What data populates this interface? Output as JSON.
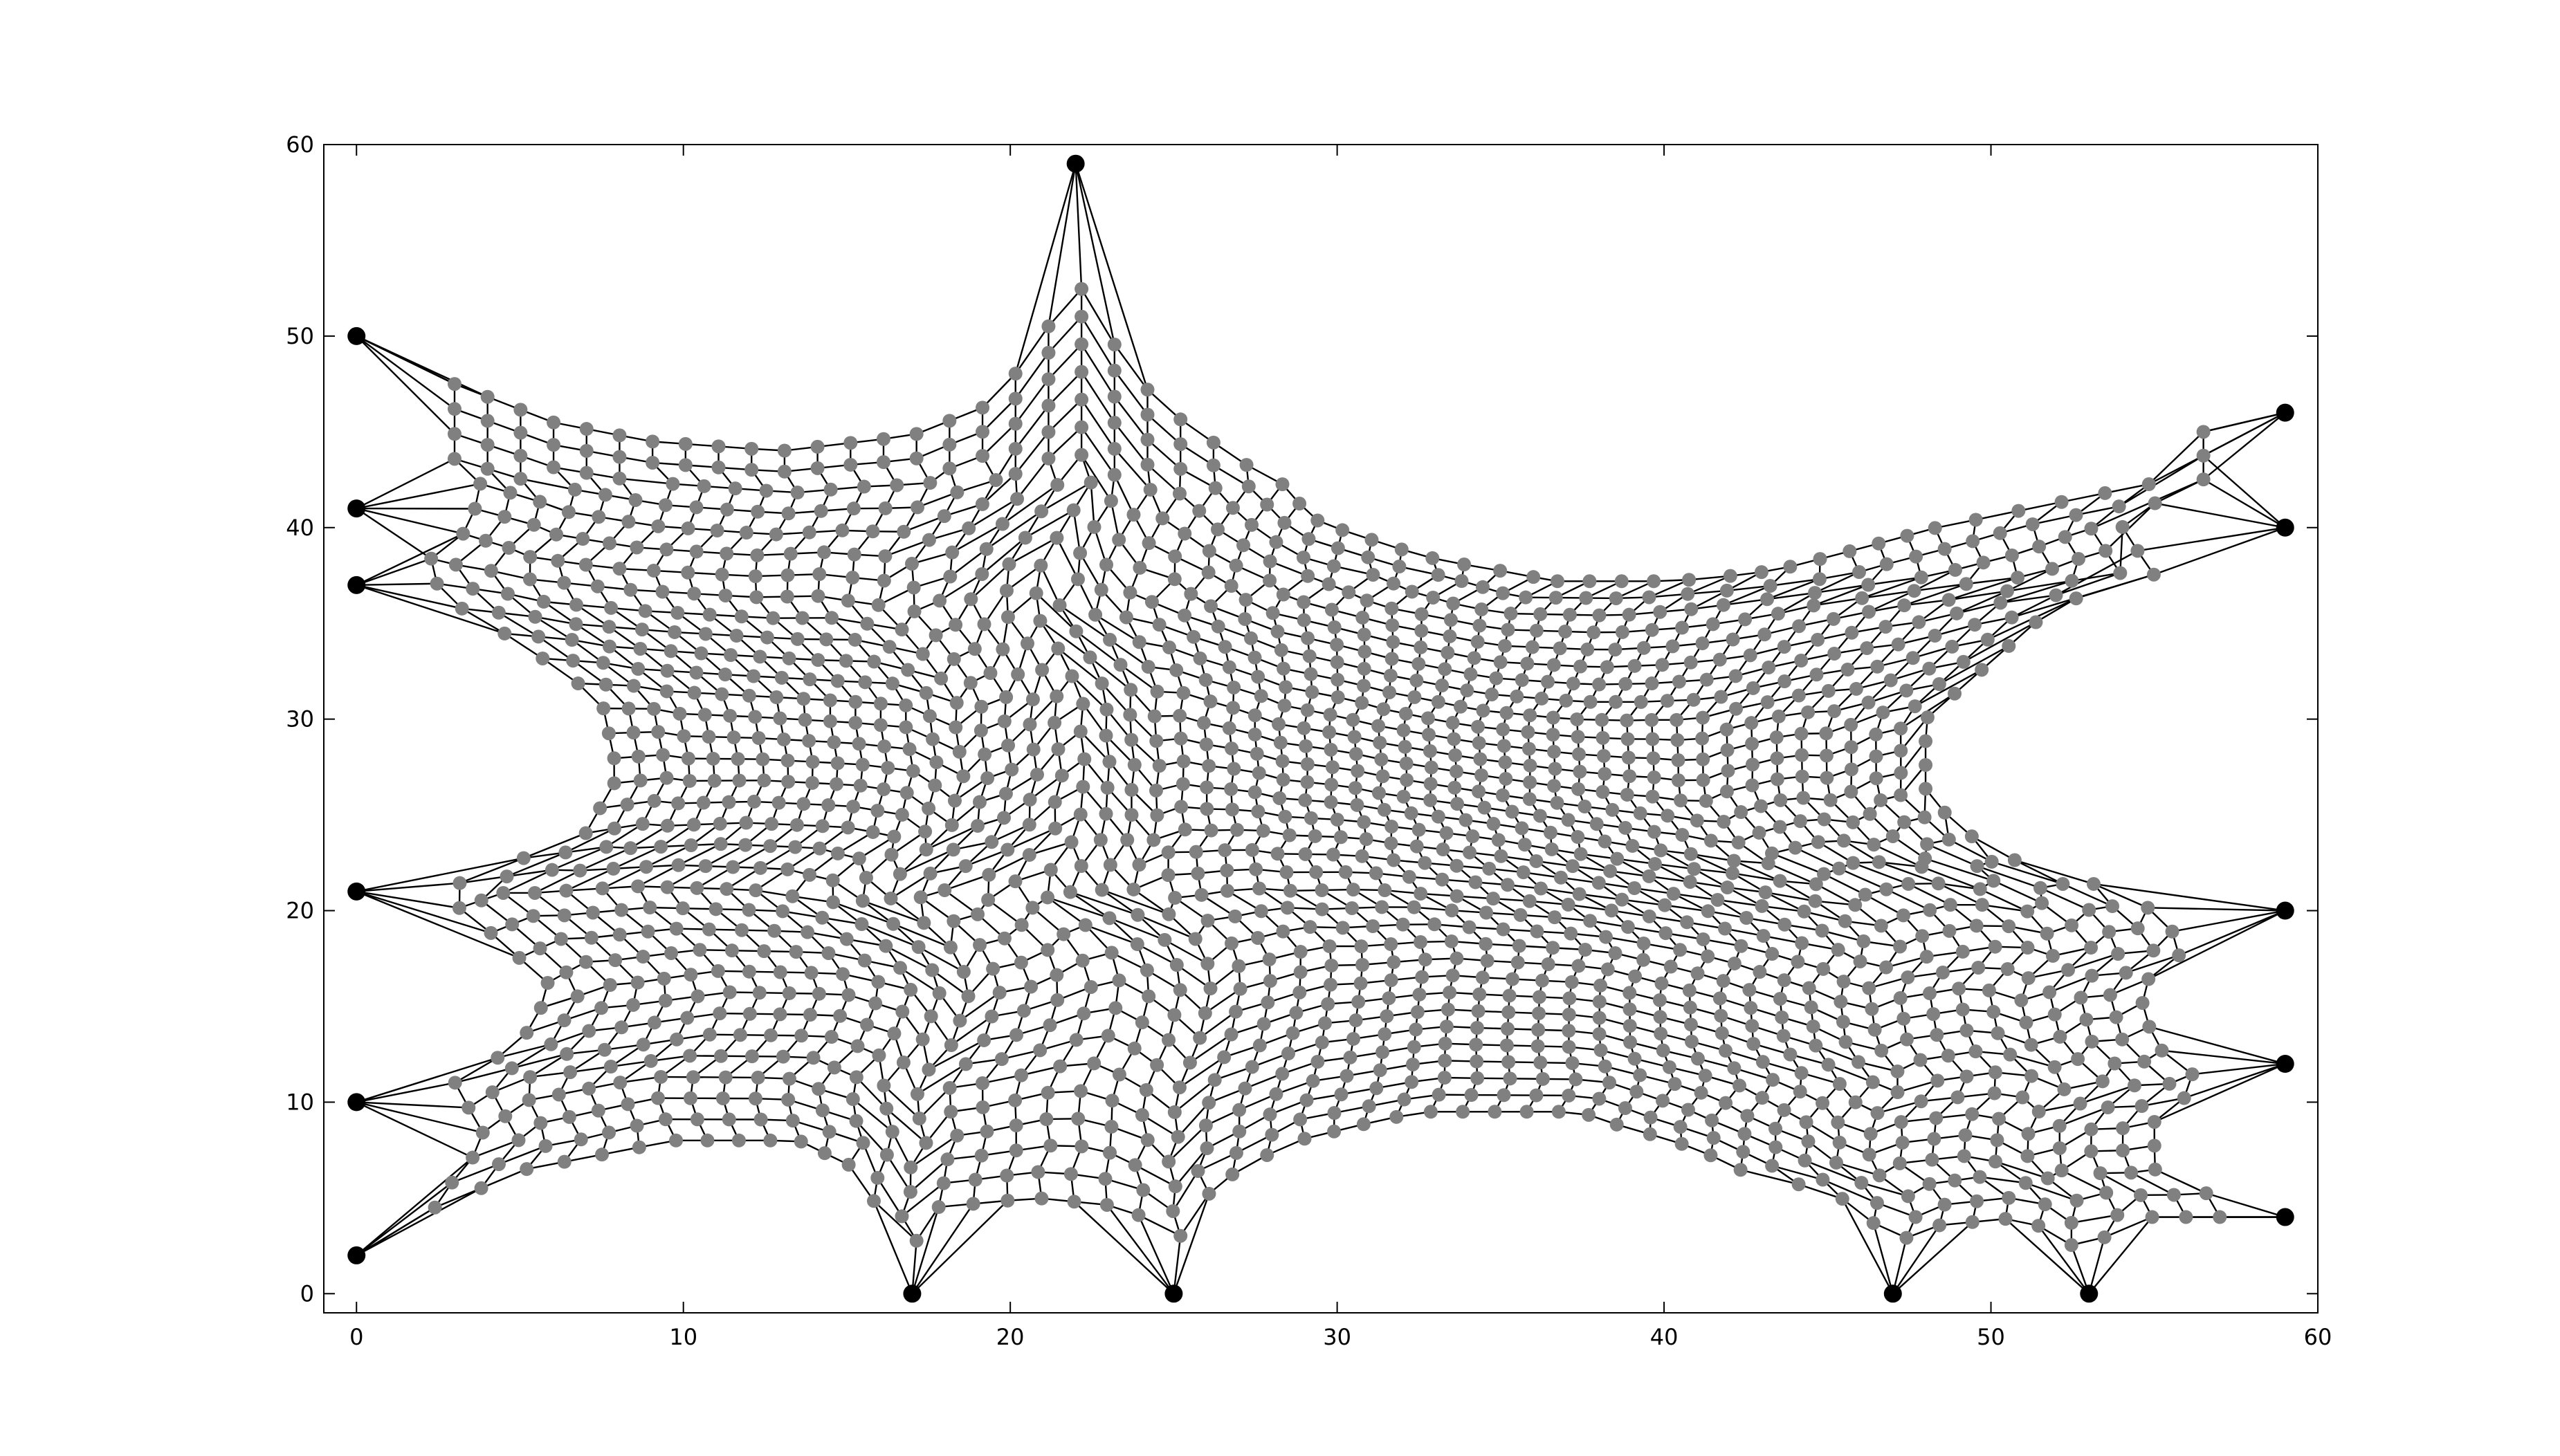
{
  "chart_data": {
    "type": "scatter",
    "subtype": "mesh-network",
    "title": "",
    "xlabel": "",
    "ylabel": "",
    "xlim": [
      -1,
      60
    ],
    "ylim": [
      -1,
      60
    ],
    "xticks": [
      0,
      10,
      20,
      30,
      40,
      50,
      60
    ],
    "yticks": [
      0,
      10,
      20,
      30,
      40,
      50,
      60
    ],
    "xtick_labels": [
      "0",
      "10",
      "20",
      "30",
      "40",
      "50",
      "60"
    ],
    "ytick_labels": [
      "0",
      "10",
      "20",
      "30",
      "40",
      "50",
      "60"
    ],
    "grid": false,
    "legend": "none",
    "colors": {
      "anchor": "#000000",
      "node": "#808080",
      "edge": "#000000",
      "background": "#ffffff"
    },
    "anchors": [
      {
        "x": 0,
        "y": 50
      },
      {
        "x": 0,
        "y": 41
      },
      {
        "x": 0,
        "y": 37
      },
      {
        "x": 0,
        "y": 21
      },
      {
        "x": 0,
        "y": 10
      },
      {
        "x": 0,
        "y": 2
      },
      {
        "x": 17,
        "y": 0
      },
      {
        "x": 25,
        "y": 0
      },
      {
        "x": 47,
        "y": 0
      },
      {
        "x": 53,
        "y": 0
      },
      {
        "x": 22,
        "y": 59
      },
      {
        "x": 59,
        "y": 46
      },
      {
        "x": 59,
        "y": 40
      },
      {
        "x": 59,
        "y": 20
      },
      {
        "x": 59,
        "y": 12
      },
      {
        "x": 59,
        "y": 4
      }
    ],
    "mesh": {
      "description": "interior grey nodes form a stretched grid held by the black anchors",
      "boundary_top": [
        [
          3,
          47.5
        ],
        [
          6,
          45.5
        ],
        [
          9,
          44.5
        ],
        [
          13,
          44
        ],
        [
          17,
          44.8
        ],
        [
          19.5,
          46.5
        ],
        [
          21,
          50
        ],
        [
          22,
          53
        ],
        [
          23,
          50
        ],
        [
          24.5,
          46.5
        ],
        [
          27,
          43.5
        ],
        [
          30,
          40.5
        ],
        [
          34,
          38.5
        ],
        [
          38,
          37.2
        ],
        [
          42,
          37.2
        ],
        [
          45,
          37.8
        ],
        [
          48,
          39
        ],
        [
          51,
          40.2
        ],
        [
          56,
          42.5
        ]
      ],
      "boundary_bottom": [
        [
          2,
          3.5
        ],
        [
          5,
          6.5
        ],
        [
          9,
          8
        ],
        [
          13,
          8
        ],
        [
          15.5,
          6.5
        ],
        [
          17,
          2.5
        ],
        [
          18,
          4.5
        ],
        [
          21,
          5
        ],
        [
          24,
          4.5
        ],
        [
          25,
          2.5
        ],
        [
          26,
          5
        ],
        [
          29,
          8
        ],
        [
          33,
          9.5
        ],
        [
          38,
          9.5
        ],
        [
          42,
          7.5
        ],
        [
          46,
          4.5
        ],
        [
          47,
          2.5
        ],
        [
          48,
          3.5
        ],
        [
          51,
          4
        ],
        [
          53,
          2
        ],
        [
          54,
          4
        ],
        [
          57,
          4
        ]
      ],
      "boundary_left": [
        [
          3,
          47.5
        ],
        [
          4,
          44
        ],
        [
          3.5,
          40
        ],
        [
          2,
          38
        ],
        [
          3,
          36
        ],
        [
          5,
          34
        ],
        [
          7.5,
          31
        ],
        [
          8,
          27
        ],
        [
          7,
          24
        ],
        [
          4,
          22
        ],
        [
          2.5,
          21
        ],
        [
          4,
          19
        ],
        [
          6,
          16
        ],
        [
          5,
          13
        ],
        [
          3,
          11
        ],
        [
          4,
          8
        ],
        [
          3,
          6
        ],
        [
          2,
          3.5
        ]
      ],
      "boundary_right": [
        [
          56,
          42.5
        ],
        [
          54,
          40
        ],
        [
          55,
          37.5
        ],
        [
          52,
          36
        ],
        [
          50,
          33
        ],
        [
          48,
          30
        ],
        [
          48,
          26
        ],
        [
          50,
          23
        ],
        [
          53,
          21.5
        ],
        [
          55,
          20
        ],
        [
          56,
          18
        ],
        [
          54.5,
          16
        ],
        [
          55,
          13
        ],
        [
          56.5,
          11
        ],
        [
          55,
          9
        ],
        [
          55,
          6.5
        ],
        [
          56.5,
          5.5
        ],
        [
          57,
          4
        ]
      ]
    }
  }
}
